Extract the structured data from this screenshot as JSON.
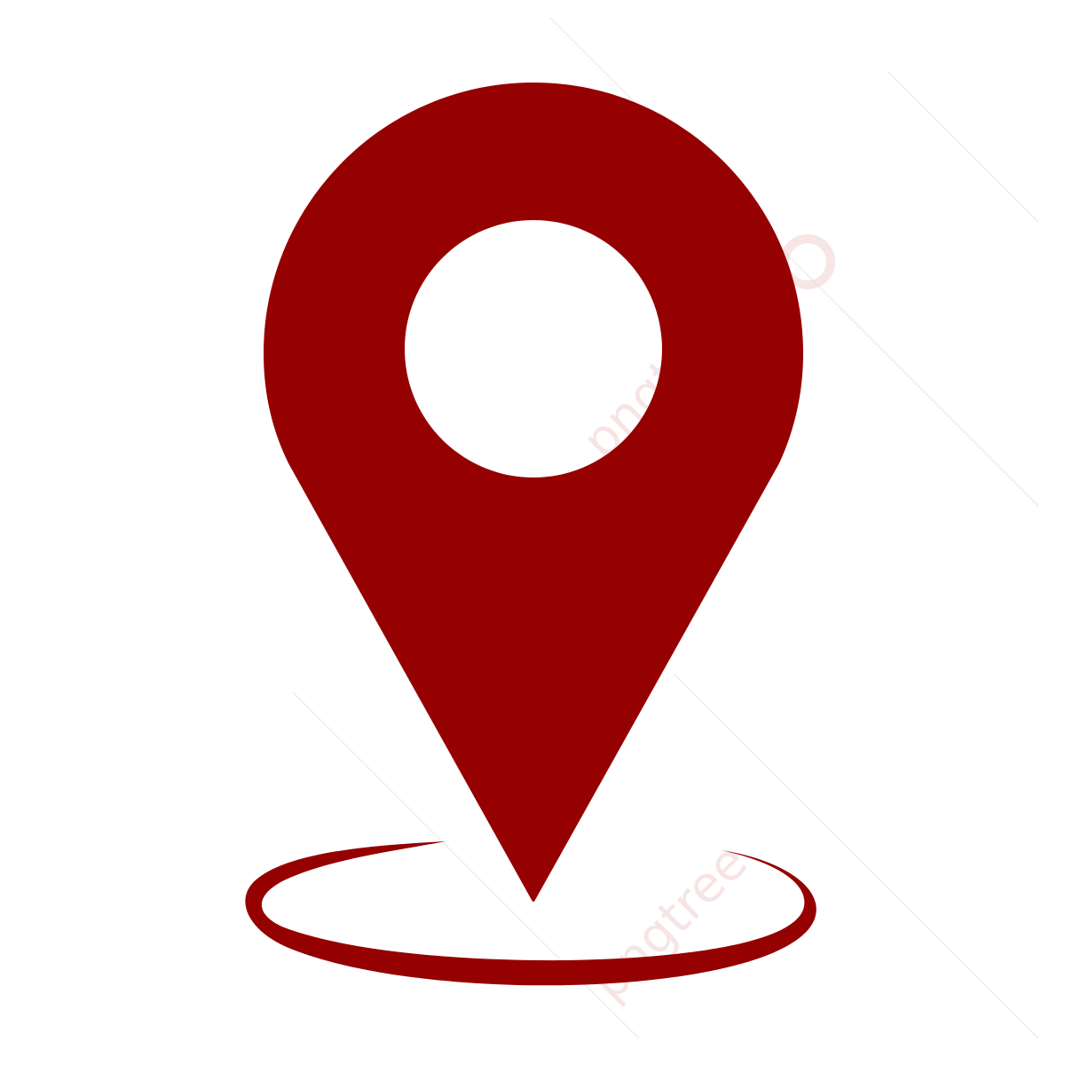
{
  "canvas": {
    "background": "#ffffff"
  },
  "icon": {
    "name": "map-location-pin-icon",
    "fill_color": "#950000",
    "inner_circle_color": "#ffffff",
    "base_ring_color": "#950000"
  },
  "watermark": {
    "text": "pngtree",
    "color": "#f3d3d3",
    "line_color": "#f1f1f1"
  }
}
